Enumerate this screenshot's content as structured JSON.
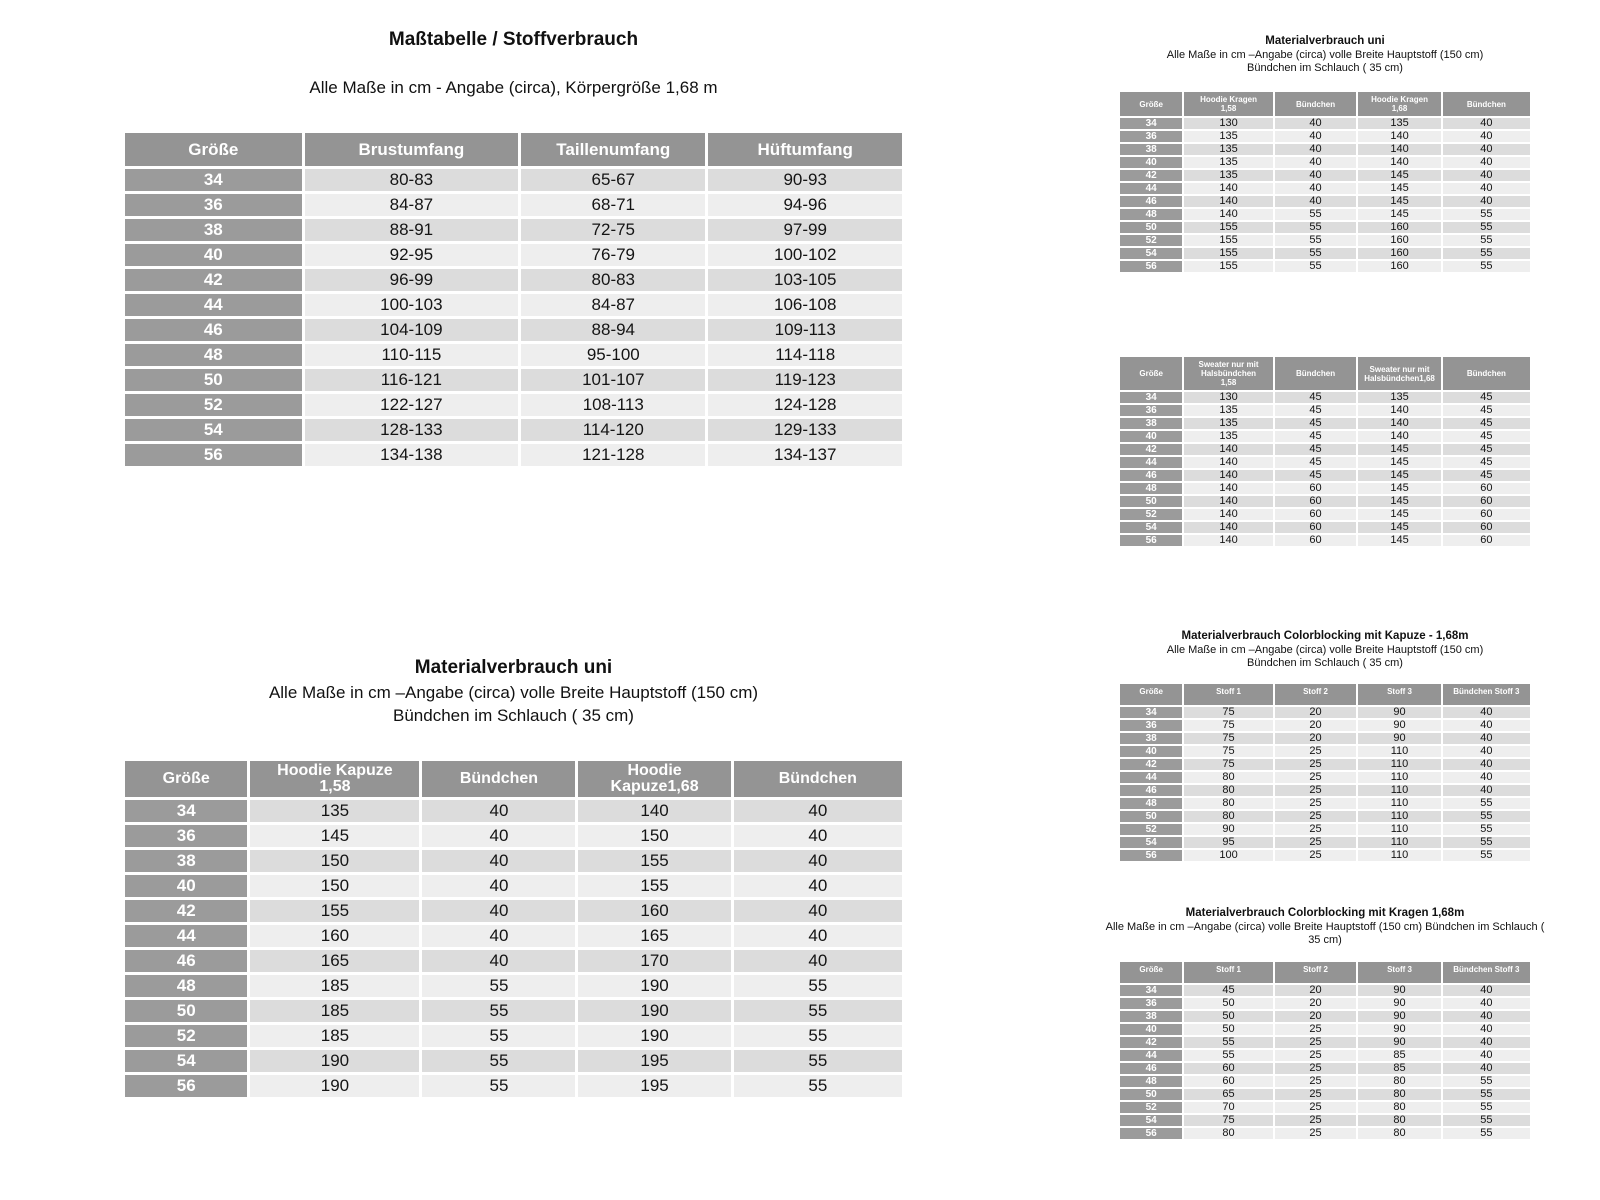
{
  "colors": {
    "header-bg": "#949494",
    "size-col-bg": "#9b9b9b",
    "row-odd-bg": "#dcdcdc",
    "row-even-bg": "#eeeeee",
    "header-text": "#ffffff",
    "cell-text": "#141414"
  },
  "left": {
    "size_chart": {
      "title": "Maßtabelle / Stoffverbrauch",
      "subtitle": "Alle Maße in cm - Angabe (circa), Körpergröße 1,68 m",
      "table": {
        "headers": [
          "Größe",
          "Brustumfang",
          "Taillenumfang",
          "Hüftumfang"
        ],
        "rows": [
          [
            "34",
            "80-83",
            "65-67",
            "90-93"
          ],
          [
            "36",
            "84-87",
            "68-71",
            "94-96"
          ],
          [
            "38",
            "88-91",
            "72-75",
            "97-99"
          ],
          [
            "40",
            "92-95",
            "76-79",
            "100-102"
          ],
          [
            "42",
            "96-99",
            "80-83",
            "103-105"
          ],
          [
            "44",
            "100-103",
            "84-87",
            "106-108"
          ],
          [
            "46",
            "104-109",
            "88-94",
            "109-113"
          ],
          [
            "48",
            "110-115",
            "95-100",
            "114-118"
          ],
          [
            "50",
            "116-121",
            "101-107",
            "119-123"
          ],
          [
            "52",
            "122-127",
            "108-113",
            "124-128"
          ],
          [
            "54",
            "128-133",
            "114-120",
            "129-133"
          ],
          [
            "56",
            "134-138",
            "121-128",
            "134-137"
          ]
        ]
      }
    },
    "material_uni_large": {
      "title": "Materialverbrauch uni",
      "subtitle1": "Alle Maße in cm –Angabe (circa) volle Breite Hauptstoff (150 cm)",
      "subtitle2": "Bündchen im Schlauch ( 35 cm)",
      "table": {
        "headers": [
          "Größe",
          "Hoodie Kapuze\n1,58",
          "Bündchen",
          "Hoodie\nKapuze1,68",
          "Bündchen"
        ],
        "rows": [
          [
            "34",
            "135",
            "40",
            "140",
            "40"
          ],
          [
            "36",
            "145",
            "40",
            "150",
            "40"
          ],
          [
            "38",
            "150",
            "40",
            "155",
            "40"
          ],
          [
            "40",
            "150",
            "40",
            "155",
            "40"
          ],
          [
            "42",
            "155",
            "40",
            "160",
            "40"
          ],
          [
            "44",
            "160",
            "40",
            "165",
            "40"
          ],
          [
            "46",
            "165",
            "40",
            "170",
            "40"
          ],
          [
            "48",
            "185",
            "55",
            "190",
            "55"
          ],
          [
            "50",
            "185",
            "55",
            "190",
            "55"
          ],
          [
            "52",
            "185",
            "55",
            "190",
            "55"
          ],
          [
            "54",
            "190",
            "55",
            "195",
            "55"
          ],
          [
            "56",
            "190",
            "55",
            "195",
            "55"
          ]
        ]
      }
    }
  },
  "right": {
    "material_uni_kragen": {
      "title": "Materialverbrauch uni",
      "subtitle1": "Alle Maße in cm –Angabe (circa) volle Breite Hauptstoff (150 cm)",
      "subtitle2": "Bündchen im Schlauch ( 35 cm)",
      "table": {
        "headers": [
          "Größe",
          "Hoodie Kragen\n1,58",
          "Bündchen",
          "Hoodie Kragen\n1,68",
          "Bündchen"
        ],
        "rows": [
          [
            "34",
            "130",
            "40",
            "135",
            "40"
          ],
          [
            "36",
            "135",
            "40",
            "140",
            "40"
          ],
          [
            "38",
            "135",
            "40",
            "140",
            "40"
          ],
          [
            "40",
            "135",
            "40",
            "140",
            "40"
          ],
          [
            "42",
            "135",
            "40",
            "145",
            "40"
          ],
          [
            "44",
            "140",
            "40",
            "145",
            "40"
          ],
          [
            "46",
            "140",
            "40",
            "145",
            "40"
          ],
          [
            "48",
            "140",
            "55",
            "145",
            "55"
          ],
          [
            "50",
            "155",
            "55",
            "160",
            "55"
          ],
          [
            "52",
            "155",
            "55",
            "160",
            "55"
          ],
          [
            "54",
            "155",
            "55",
            "160",
            "55"
          ],
          [
            "56",
            "155",
            "55",
            "160",
            "55"
          ]
        ]
      }
    },
    "sweater_halsbuendchen": {
      "table": {
        "headers": [
          "Größe",
          "Sweater nur mit\nHalsbündchen\n1,58",
          "Bündchen",
          "Sweater nur mit\nHalsbündchen1,68",
          "Bündchen"
        ],
        "rows": [
          [
            "34",
            "130",
            "45",
            "135",
            "45"
          ],
          [
            "36",
            "135",
            "45",
            "140",
            "45"
          ],
          [
            "38",
            "135",
            "45",
            "140",
            "45"
          ],
          [
            "40",
            "135",
            "45",
            "140",
            "45"
          ],
          [
            "42",
            "140",
            "45",
            "145",
            "45"
          ],
          [
            "44",
            "140",
            "45",
            "145",
            "45"
          ],
          [
            "46",
            "140",
            "45",
            "145",
            "45"
          ],
          [
            "48",
            "140",
            "60",
            "145",
            "60"
          ],
          [
            "50",
            "140",
            "60",
            "145",
            "60"
          ],
          [
            "52",
            "140",
            "60",
            "145",
            "60"
          ],
          [
            "54",
            "140",
            "60",
            "145",
            "60"
          ],
          [
            "56",
            "140",
            "60",
            "145",
            "60"
          ]
        ]
      }
    },
    "colorblocking_kapuze": {
      "title": "Materialverbrauch Colorblocking mit Kapuze - 1,68m",
      "subtitle1": "Alle Maße in cm –Angabe (circa) volle Breite Hauptstoff (150 cm)",
      "subtitle2": "Bündchen im Schlauch ( 35 cm)",
      "table": {
        "headers": [
          "Größe",
          "Stoff 1",
          "Stoff 2",
          "Stoff 3",
          "Bündchen Stoff 3"
        ],
        "rows": [
          [
            "34",
            "75",
            "20",
            "90",
            "40"
          ],
          [
            "36",
            "75",
            "20",
            "90",
            "40"
          ],
          [
            "38",
            "75",
            "20",
            "90",
            "40"
          ],
          [
            "40",
            "75",
            "25",
            "110",
            "40"
          ],
          [
            "42",
            "75",
            "25",
            "110",
            "40"
          ],
          [
            "44",
            "80",
            "25",
            "110",
            "40"
          ],
          [
            "46",
            "80",
            "25",
            "110",
            "40"
          ],
          [
            "48",
            "80",
            "25",
            "110",
            "55"
          ],
          [
            "50",
            "80",
            "25",
            "110",
            "55"
          ],
          [
            "52",
            "90",
            "25",
            "110",
            "55"
          ],
          [
            "54",
            "95",
            "25",
            "110",
            "55"
          ],
          [
            "56",
            "100",
            "25",
            "110",
            "55"
          ]
        ]
      }
    },
    "colorblocking_kragen": {
      "title": "Materialverbrauch Colorblocking mit Kragen 1,68m",
      "subtitle": "Alle Maße in cm –Angabe (circa) volle Breite Hauptstoff (150 cm) Bündchen im Schlauch (\n35 cm)",
      "table": {
        "headers": [
          "Größe",
          "Stoff 1",
          "Stoff 2",
          "Stoff 3",
          "Bündchen Stoff 3"
        ],
        "rows": [
          [
            "34",
            "45",
            "20",
            "90",
            "40"
          ],
          [
            "36",
            "50",
            "20",
            "90",
            "40"
          ],
          [
            "38",
            "50",
            "20",
            "90",
            "40"
          ],
          [
            "40",
            "50",
            "25",
            "90",
            "40"
          ],
          [
            "42",
            "55",
            "25",
            "90",
            "40"
          ],
          [
            "44",
            "55",
            "25",
            "85",
            "40"
          ],
          [
            "46",
            "60",
            "25",
            "85",
            "40"
          ],
          [
            "48",
            "60",
            "25",
            "80",
            "55"
          ],
          [
            "50",
            "65",
            "25",
            "80",
            "55"
          ],
          [
            "52",
            "70",
            "25",
            "80",
            "55"
          ],
          [
            "54",
            "75",
            "25",
            "80",
            "55"
          ],
          [
            "56",
            "80",
            "25",
            "80",
            "55"
          ]
        ]
      }
    }
  }
}
